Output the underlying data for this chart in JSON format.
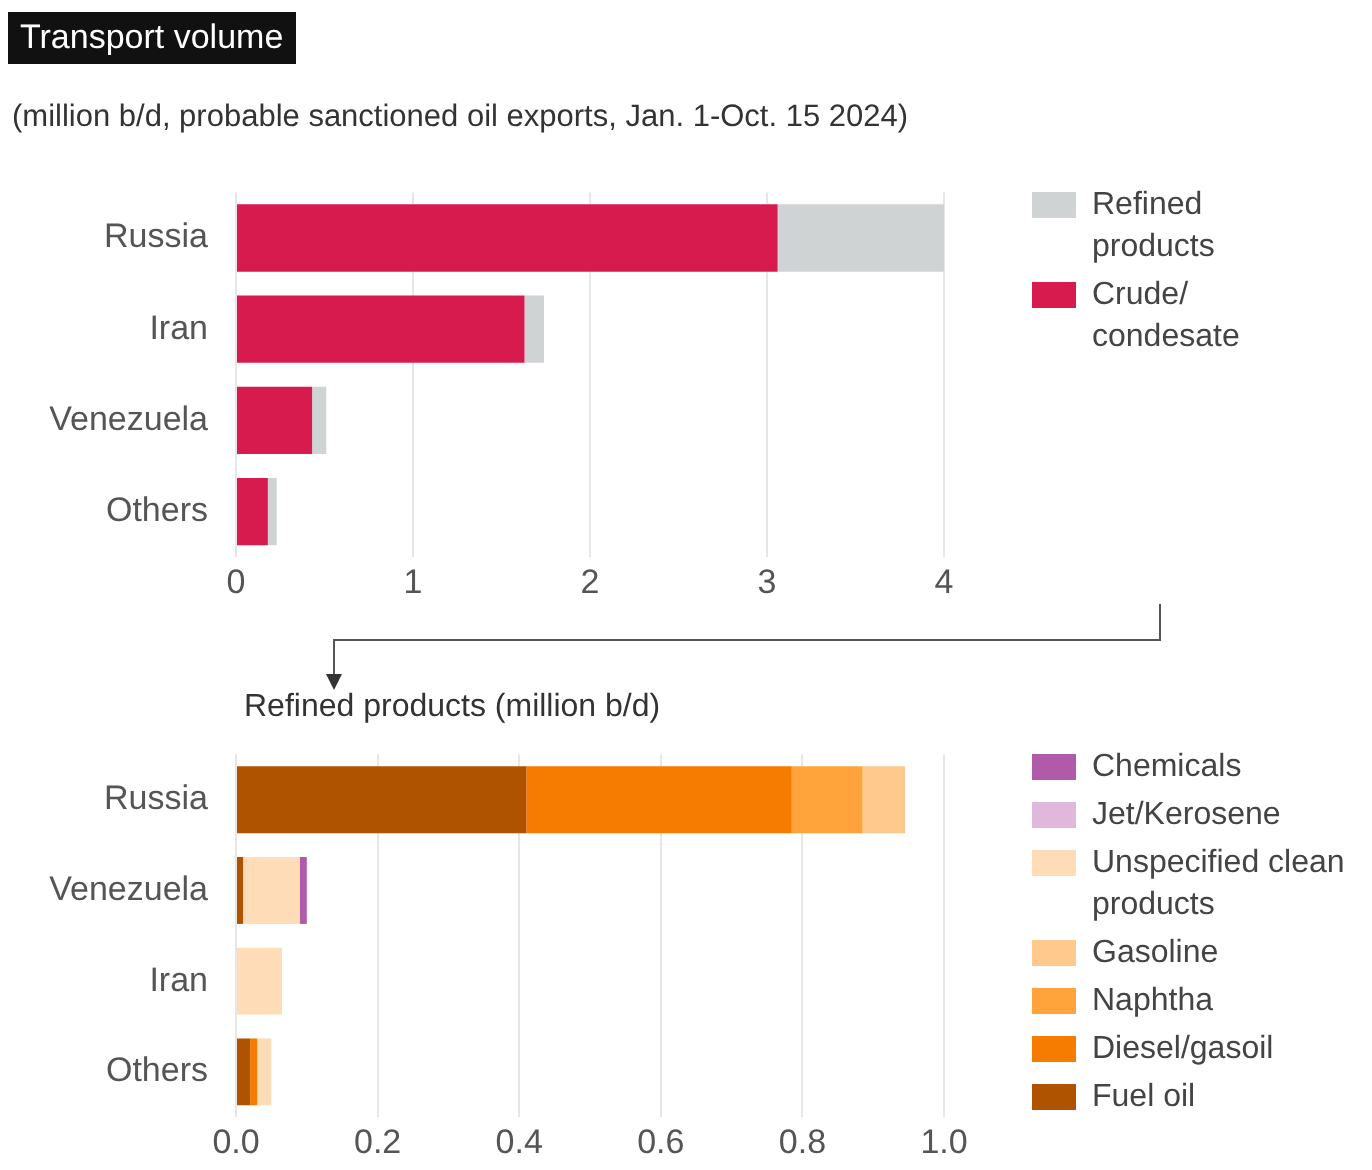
{
  "chart_data": [
    {
      "type": "bar",
      "title": "Transport volume",
      "subtitle": "(million b/d, probable sanctioned oil exports, Jan. 1-Oct. 15 2024)",
      "orientation": "horizontal",
      "stacked": true,
      "categories": [
        "Russia",
        "Iran",
        "Venezuela",
        "Others"
      ],
      "series": [
        {
          "name": "Crude/condesate",
          "color": "#d81b4f",
          "values": [
            3.06,
            1.63,
            0.43,
            0.18
          ]
        },
        {
          "name": "Refined products",
          "color": "#d0d3d4",
          "values": [
            0.94,
            0.11,
            0.08,
            0.05
          ]
        }
      ],
      "xlim": [
        0,
        4
      ],
      "xticks": [
        0,
        1,
        2,
        3,
        4
      ],
      "grid": "x",
      "legend": "right"
    },
    {
      "type": "bar",
      "title": "Refined products (million b/d)",
      "orientation": "horizontal",
      "stacked": true,
      "categories": [
        "Russia",
        "Venezuela",
        "Iran",
        "Others"
      ],
      "series": [
        {
          "name": "Fuel oil",
          "color": "#b05300",
          "values": [
            0.41,
            0.01,
            0,
            0.02
          ]
        },
        {
          "name": "Diesel/gasoil",
          "color": "#f57c00",
          "values": [
            0.375,
            0,
            0,
            0.01
          ]
        },
        {
          "name": "Naphtha",
          "color": "#ffa33a",
          "values": [
            0.1,
            0,
            0,
            0
          ]
        },
        {
          "name": "Gasoline",
          "color": "#ffc98e",
          "values": [
            0.06,
            0,
            0,
            0
          ]
        },
        {
          "name": "Unspecified clean products",
          "color": "#ffdcb8",
          "values": [
            0,
            0.08,
            0.065,
            0.02
          ]
        },
        {
          "name": "Jet/Kerosene",
          "color": "#e0b8dc",
          "values": [
            0,
            0,
            0,
            0
          ]
        },
        {
          "name": "Chemicals",
          "color": "#b05aaa",
          "values": [
            0,
            0.01,
            0,
            0
          ]
        }
      ],
      "xlim": [
        0,
        1
      ],
      "xticks": [
        {
          "value": 0,
          "label": "0.0"
        },
        0.2,
        0.4,
        0.6,
        0.8,
        {
          "value": 1,
          "label": "1.0"
        }
      ],
      "grid": "x",
      "legend": "right"
    }
  ]
}
